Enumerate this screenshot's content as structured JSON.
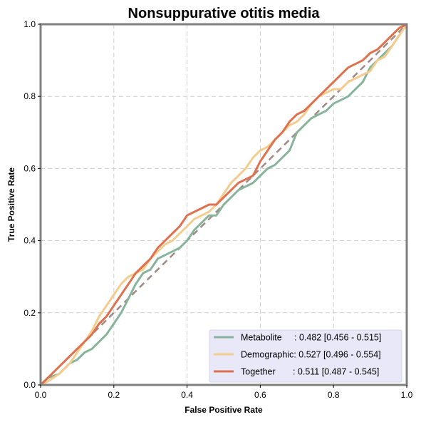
{
  "chart_data": {
    "type": "line",
    "title": "Nonsuppurative otitis media",
    "xlabel": "False Positive Rate",
    "ylabel": "True Positive Rate",
    "xlim": [
      0,
      1
    ],
    "ylim": [
      0,
      1
    ],
    "xticks": [
      "0.0",
      "0.2",
      "0.4",
      "0.6",
      "0.8",
      "1.0"
    ],
    "yticks": [
      "0.0",
      "0.2",
      "0.4",
      "0.6",
      "0.8",
      "1.0"
    ],
    "grid": true,
    "legend_position": "bottom-right",
    "diagonal_color": "#a08a84",
    "series": [
      {
        "name": "Metabolite",
        "legend_label": "Metabolite     : 0.482 [0.456 - 0.515]",
        "color": "#88b49c",
        "x": [
          0,
          0.02,
          0.05,
          0.08,
          0.1,
          0.12,
          0.14,
          0.16,
          0.18,
          0.2,
          0.22,
          0.24,
          0.26,
          0.28,
          0.3,
          0.32,
          0.34,
          0.36,
          0.38,
          0.4,
          0.42,
          0.44,
          0.46,
          0.48,
          0.5,
          0.52,
          0.54,
          0.56,
          0.58,
          0.6,
          0.62,
          0.64,
          0.66,
          0.68,
          0.7,
          0.72,
          0.74,
          0.76,
          0.78,
          0.8,
          0.82,
          0.84,
          0.86,
          0.88,
          0.9,
          0.92,
          0.94,
          0.96,
          0.98,
          1.0
        ],
        "y": [
          0,
          0.02,
          0.03,
          0.06,
          0.07,
          0.09,
          0.1,
          0.12,
          0.14,
          0.17,
          0.2,
          0.24,
          0.28,
          0.31,
          0.32,
          0.35,
          0.36,
          0.37,
          0.38,
          0.4,
          0.43,
          0.45,
          0.47,
          0.47,
          0.5,
          0.52,
          0.54,
          0.55,
          0.56,
          0.58,
          0.6,
          0.61,
          0.63,
          0.65,
          0.7,
          0.72,
          0.74,
          0.75,
          0.76,
          0.78,
          0.79,
          0.8,
          0.82,
          0.84,
          0.88,
          0.9,
          0.92,
          0.94,
          0.97,
          1.0
        ]
      },
      {
        "name": "Demographic",
        "legend_label": "Demographic: 0.527 [0.496 - 0.554]",
        "color": "#f3cc8e",
        "x": [
          0,
          0.02,
          0.05,
          0.08,
          0.1,
          0.12,
          0.14,
          0.16,
          0.18,
          0.2,
          0.22,
          0.24,
          0.26,
          0.28,
          0.3,
          0.32,
          0.34,
          0.36,
          0.38,
          0.4,
          0.42,
          0.44,
          0.46,
          0.48,
          0.5,
          0.52,
          0.54,
          0.56,
          0.58,
          0.6,
          0.62,
          0.64,
          0.66,
          0.68,
          0.7,
          0.72,
          0.74,
          0.76,
          0.78,
          0.8,
          0.82,
          0.84,
          0.86,
          0.88,
          0.9,
          0.92,
          0.94,
          0.96,
          0.98,
          1.0
        ],
        "y": [
          0,
          0.01,
          0.03,
          0.06,
          0.09,
          0.12,
          0.15,
          0.19,
          0.22,
          0.25,
          0.28,
          0.3,
          0.31,
          0.32,
          0.35,
          0.37,
          0.39,
          0.4,
          0.42,
          0.44,
          0.46,
          0.47,
          0.48,
          0.5,
          0.53,
          0.56,
          0.58,
          0.6,
          0.63,
          0.65,
          0.66,
          0.68,
          0.7,
          0.72,
          0.73,
          0.75,
          0.78,
          0.8,
          0.81,
          0.82,
          0.82,
          0.84,
          0.85,
          0.86,
          0.87,
          0.9,
          0.91,
          0.94,
          0.97,
          1.0
        ]
      },
      {
        "name": "Together",
        "legend_label": "Together       : 0.511 [0.487 - 0.545]",
        "color": "#e0714f",
        "x": [
          0,
          0.02,
          0.05,
          0.08,
          0.1,
          0.12,
          0.14,
          0.16,
          0.18,
          0.2,
          0.22,
          0.24,
          0.26,
          0.28,
          0.3,
          0.32,
          0.34,
          0.36,
          0.38,
          0.4,
          0.42,
          0.44,
          0.46,
          0.48,
          0.5,
          0.52,
          0.54,
          0.56,
          0.58,
          0.6,
          0.62,
          0.64,
          0.66,
          0.68,
          0.7,
          0.72,
          0.74,
          0.76,
          0.78,
          0.8,
          0.82,
          0.84,
          0.86,
          0.88,
          0.9,
          0.92,
          0.94,
          0.96,
          0.98,
          1.0
        ],
        "y": [
          0,
          0.02,
          0.05,
          0.08,
          0.1,
          0.12,
          0.14,
          0.17,
          0.19,
          0.22,
          0.25,
          0.28,
          0.31,
          0.33,
          0.35,
          0.38,
          0.4,
          0.42,
          0.44,
          0.47,
          0.48,
          0.49,
          0.5,
          0.5,
          0.52,
          0.54,
          0.56,
          0.57,
          0.58,
          0.62,
          0.65,
          0.68,
          0.7,
          0.73,
          0.75,
          0.76,
          0.78,
          0.8,
          0.82,
          0.84,
          0.86,
          0.88,
          0.89,
          0.9,
          0.92,
          0.93,
          0.95,
          0.97,
          0.99,
          1.0
        ]
      }
    ]
  }
}
